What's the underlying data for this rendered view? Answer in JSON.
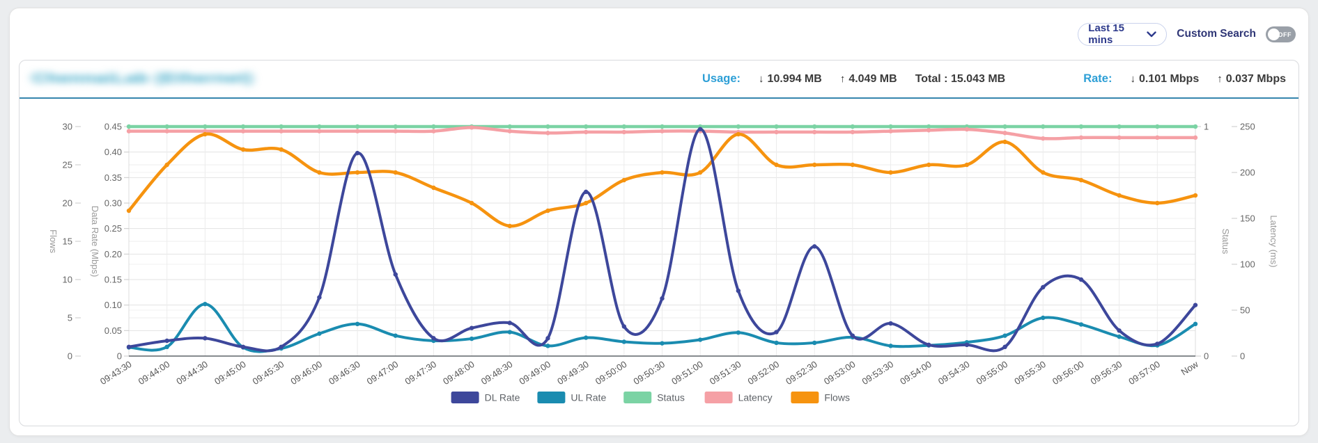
{
  "controls": {
    "time_range": "Last 15 mins",
    "custom_search_label": "Custom Search",
    "toggle_state": "OFF"
  },
  "icons": {
    "down_arrow": "↓",
    "up_arrow": "↑",
    "chevron": "chevron-down"
  },
  "panel": {
    "title": "ChennaiLab (Ethernet)",
    "title_redacted": true,
    "usage": {
      "label": "Usage:",
      "down_value": "10.994 MB",
      "up_value": "4.049 MB",
      "total_text": "Total : 15.043 MB"
    },
    "rate": {
      "label": "Rate:",
      "down_value": "0.101 Mbps",
      "up_value": "0.037 Mbps"
    }
  },
  "colors": {
    "accent_blue": "#2d9fd6",
    "navy_text": "#2d3a8c",
    "divider_teal": "#3585ad",
    "dl": "#3d479b",
    "ul": "#1a8cb0",
    "status": "#7bd3a4",
    "latency": "#f5a0a5",
    "flows": "#f6930f"
  },
  "chart_data": {
    "type": "line",
    "x": [
      "09:43:30",
      "09:44:00",
      "09:44:30",
      "09:45:00",
      "09:45:30",
      "09:46:00",
      "09:46:30",
      "09:47:00",
      "09:47:30",
      "09:48:00",
      "09:48:30",
      "09:49:00",
      "09:49:30",
      "09:50:00",
      "09:50:30",
      "09:51:00",
      "09:51:30",
      "09:52:00",
      "09:52:30",
      "09:53:00",
      "09:53:30",
      "09:54:00",
      "09:54:30",
      "09:55:00",
      "09:55:30",
      "09:56:00",
      "09:56:30",
      "09:57:00",
      "Now"
    ],
    "axes": {
      "flows": {
        "label": "Flows",
        "side": "left",
        "min": 0,
        "max": 30,
        "tick_values": [
          30,
          25,
          20,
          15,
          10,
          5,
          0
        ],
        "tick_labels": [
          "30",
          "25",
          "20",
          "15",
          "10",
          "5",
          "0"
        ]
      },
      "datarate": {
        "label": "Data Rate (Mbps)",
        "side": "left",
        "min": 0,
        "max": 0.45,
        "tick_values": [
          0.45,
          0.4,
          0.35,
          0.3,
          0.25,
          0.2,
          0.15,
          0.1,
          0.05,
          0
        ],
        "tick_labels": [
          "0.45",
          "0.40",
          "0.35",
          "0.30",
          "0.25",
          "0.20",
          "0.15",
          "0.10",
          "0.05",
          "0"
        ]
      },
      "status": {
        "label": "Status",
        "side": "right",
        "min": 0,
        "max": 1,
        "tick_values": [
          1,
          0
        ],
        "tick_labels": [
          "1",
          "0"
        ]
      },
      "latency": {
        "label": "Latency (ms)",
        "side": "right",
        "min": 0,
        "max": 250,
        "tick_values": [
          250,
          200,
          150,
          100,
          50,
          0
        ],
        "tick_labels": [
          "250",
          "200",
          "150",
          "100",
          "50",
          "0"
        ]
      }
    },
    "series": [
      {
        "name": "DL Rate",
        "axis": "datarate",
        "color": "#3d479b",
        "values": [
          0.018,
          0.03,
          0.035,
          0.018,
          0.018,
          0.115,
          0.398,
          0.16,
          0.035,
          0.055,
          0.065,
          0.035,
          0.322,
          0.058,
          0.113,
          0.445,
          0.128,
          0.047,
          0.215,
          0.04,
          0.064,
          0.022,
          0.022,
          0.018,
          0.135,
          0.15,
          0.05,
          0.024,
          0.1
        ]
      },
      {
        "name": "UL Rate",
        "axis": "datarate",
        "color": "#1a8cb0",
        "values": [
          0.017,
          0.018,
          0.102,
          0.017,
          0.015,
          0.044,
          0.063,
          0.04,
          0.03,
          0.034,
          0.047,
          0.02,
          0.036,
          0.028,
          0.025,
          0.032,
          0.046,
          0.026,
          0.026,
          0.037,
          0.02,
          0.021,
          0.027,
          0.04,
          0.075,
          0.062,
          0.038,
          0.021,
          0.063
        ]
      },
      {
        "name": "Status",
        "axis": "status",
        "color": "#7bd3a4",
        "values": [
          1,
          1,
          1,
          1,
          1,
          1,
          1,
          1,
          1,
          1,
          1,
          1,
          1,
          1,
          1,
          1,
          1,
          1,
          1,
          1,
          1,
          1,
          1,
          1,
          1,
          1,
          1,
          1,
          1
        ]
      },
      {
        "name": "Latency",
        "axis": "latency",
        "color": "#f5a0a5",
        "values": [
          245,
          245,
          245,
          245,
          245,
          245,
          245,
          245,
          245,
          249,
          245,
          243,
          244,
          244,
          245,
          245,
          244,
          244,
          244,
          244,
          245,
          246,
          247,
          243,
          237,
          238,
          238,
          238,
          238
        ]
      },
      {
        "name": "Flows",
        "axis": "flows",
        "color": "#f6930f",
        "values": [
          19,
          25,
          29,
          27,
          27,
          24,
          24,
          24,
          22,
          20,
          17,
          19,
          20,
          23,
          24,
          24,
          29,
          25,
          25,
          25,
          24,
          25,
          25,
          28,
          24,
          23,
          21,
          20,
          21
        ]
      }
    ],
    "grid": true,
    "legend_position": "bottom"
  }
}
